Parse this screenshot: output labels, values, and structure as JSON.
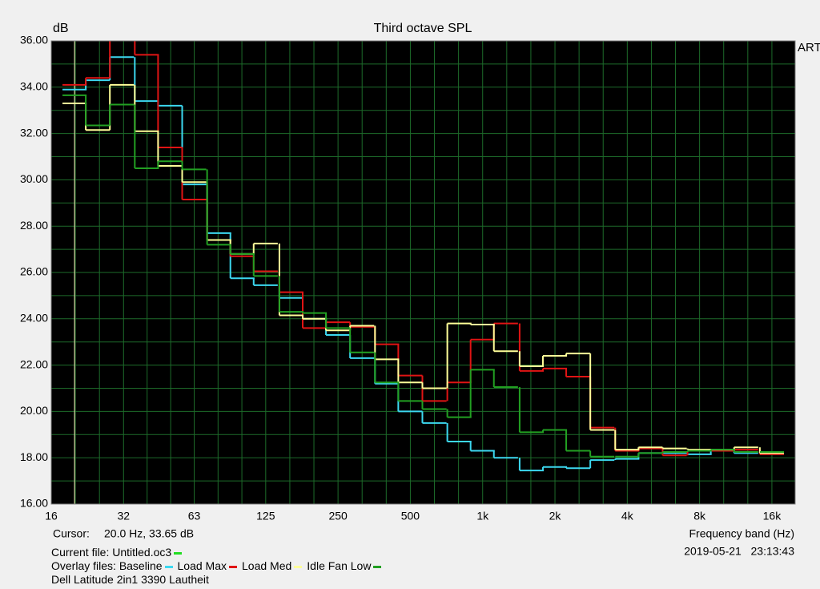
{
  "chart_data": {
    "type": "step",
    "title": "Third octave SPL",
    "y_label": "dB",
    "x_label": "Frequency band (Hz)",
    "watermark": "ARTA",
    "xscale": "log",
    "xlim": [
      16,
      20000
    ],
    "xticks": [
      16,
      32,
      63,
      125,
      250,
      500,
      {
        "value": 1000,
        "label": "1k"
      },
      {
        "value": 2000,
        "label": "2k"
      },
      {
        "value": 4000,
        "label": "4k"
      },
      {
        "value": 8000,
        "label": "8k"
      },
      {
        "value": 16000,
        "label": "16k"
      }
    ],
    "ylim": [
      16,
      36
    ],
    "yticks": [
      {
        "value": 16,
        "label": "16.00"
      },
      {
        "value": 18,
        "label": "18.00"
      },
      {
        "value": 20,
        "label": "20.00"
      },
      {
        "value": 22,
        "label": "22.00"
      },
      {
        "value": 24,
        "label": "24.00"
      },
      {
        "value": 26,
        "label": "26.00"
      },
      {
        "value": 28,
        "label": "28.00"
      },
      {
        "value": 30,
        "label": "30.00"
      },
      {
        "value": 32,
        "label": "32.00"
      },
      {
        "value": 34,
        "label": "34.00"
      },
      {
        "value": 36,
        "label": "36.00"
      }
    ],
    "grid": true,
    "x": [
      20,
      25,
      31.5,
      40,
      50,
      63,
      80,
      100,
      125,
      160,
      200,
      250,
      315,
      400,
      500,
      630,
      800,
      1000,
      1250,
      1600,
      2000,
      2500,
      3150,
      4000,
      5000,
      6300,
      8000,
      10000,
      12500,
      16000
    ],
    "series": [
      {
        "name": "Baseline",
        "color": "#3cd8f0",
        "values": [
          33.9,
          34.3,
          35.3,
          33.4,
          33.2,
          29.8,
          27.7,
          25.75,
          25.45,
          24.9,
          24.0,
          23.3,
          22.3,
          21.2,
          20.0,
          19.5,
          18.7,
          18.3,
          18.0,
          17.45,
          17.6,
          17.55,
          17.9,
          17.95,
          18.2,
          18.2,
          18.15,
          18.3,
          18.2,
          18.25
        ]
      },
      {
        "name": "Load Max",
        "color": "#e01414",
        "values": [
          34.1,
          34.4,
          36.5,
          35.4,
          31.4,
          29.15,
          27.4,
          26.7,
          26.05,
          25.15,
          23.6,
          23.85,
          23.65,
          22.9,
          21.55,
          20.45,
          21.25,
          23.1,
          23.8,
          21.75,
          21.85,
          21.5,
          19.3,
          18.3,
          18.4,
          18.1,
          18.3,
          18.3,
          18.35,
          18.15
        ]
      },
      {
        "name": "Load Med",
        "color": "#ffff99",
        "values": [
          33.3,
          32.15,
          34.1,
          32.1,
          30.6,
          29.9,
          27.4,
          26.8,
          27.25,
          24.15,
          24.0,
          23.5,
          23.7,
          22.25,
          21.25,
          21.0,
          23.8,
          23.75,
          22.6,
          21.95,
          22.4,
          22.5,
          19.2,
          18.35,
          18.45,
          18.4,
          18.35,
          18.35,
          18.45,
          18.2
        ]
      },
      {
        "name": "Idle Fan Low",
        "color": "#22a022",
        "values": [
          33.65,
          32.35,
          33.25,
          30.5,
          30.8,
          30.45,
          27.2,
          26.8,
          25.85,
          24.3,
          24.25,
          23.6,
          22.55,
          21.25,
          20.45,
          20.1,
          19.75,
          21.8,
          21.05,
          19.1,
          19.2,
          18.3,
          18.05,
          18.05,
          18.2,
          18.25,
          18.3,
          18.35,
          18.25,
          18.25
        ]
      }
    ],
    "cursor": {
      "label": "Cursor:",
      "x": 20,
      "readout": "20.0 Hz, 33.65 dB",
      "color": "#fff4c0"
    }
  },
  "current_file": {
    "label": "Current file: Untitled.oc3",
    "color": "#22dd22"
  },
  "overlay_label": "Overlay files:",
  "caption": "Dell Latitude 2in1 3390 Lautheit",
  "timestamp": "2019-05-21   23:13:43"
}
